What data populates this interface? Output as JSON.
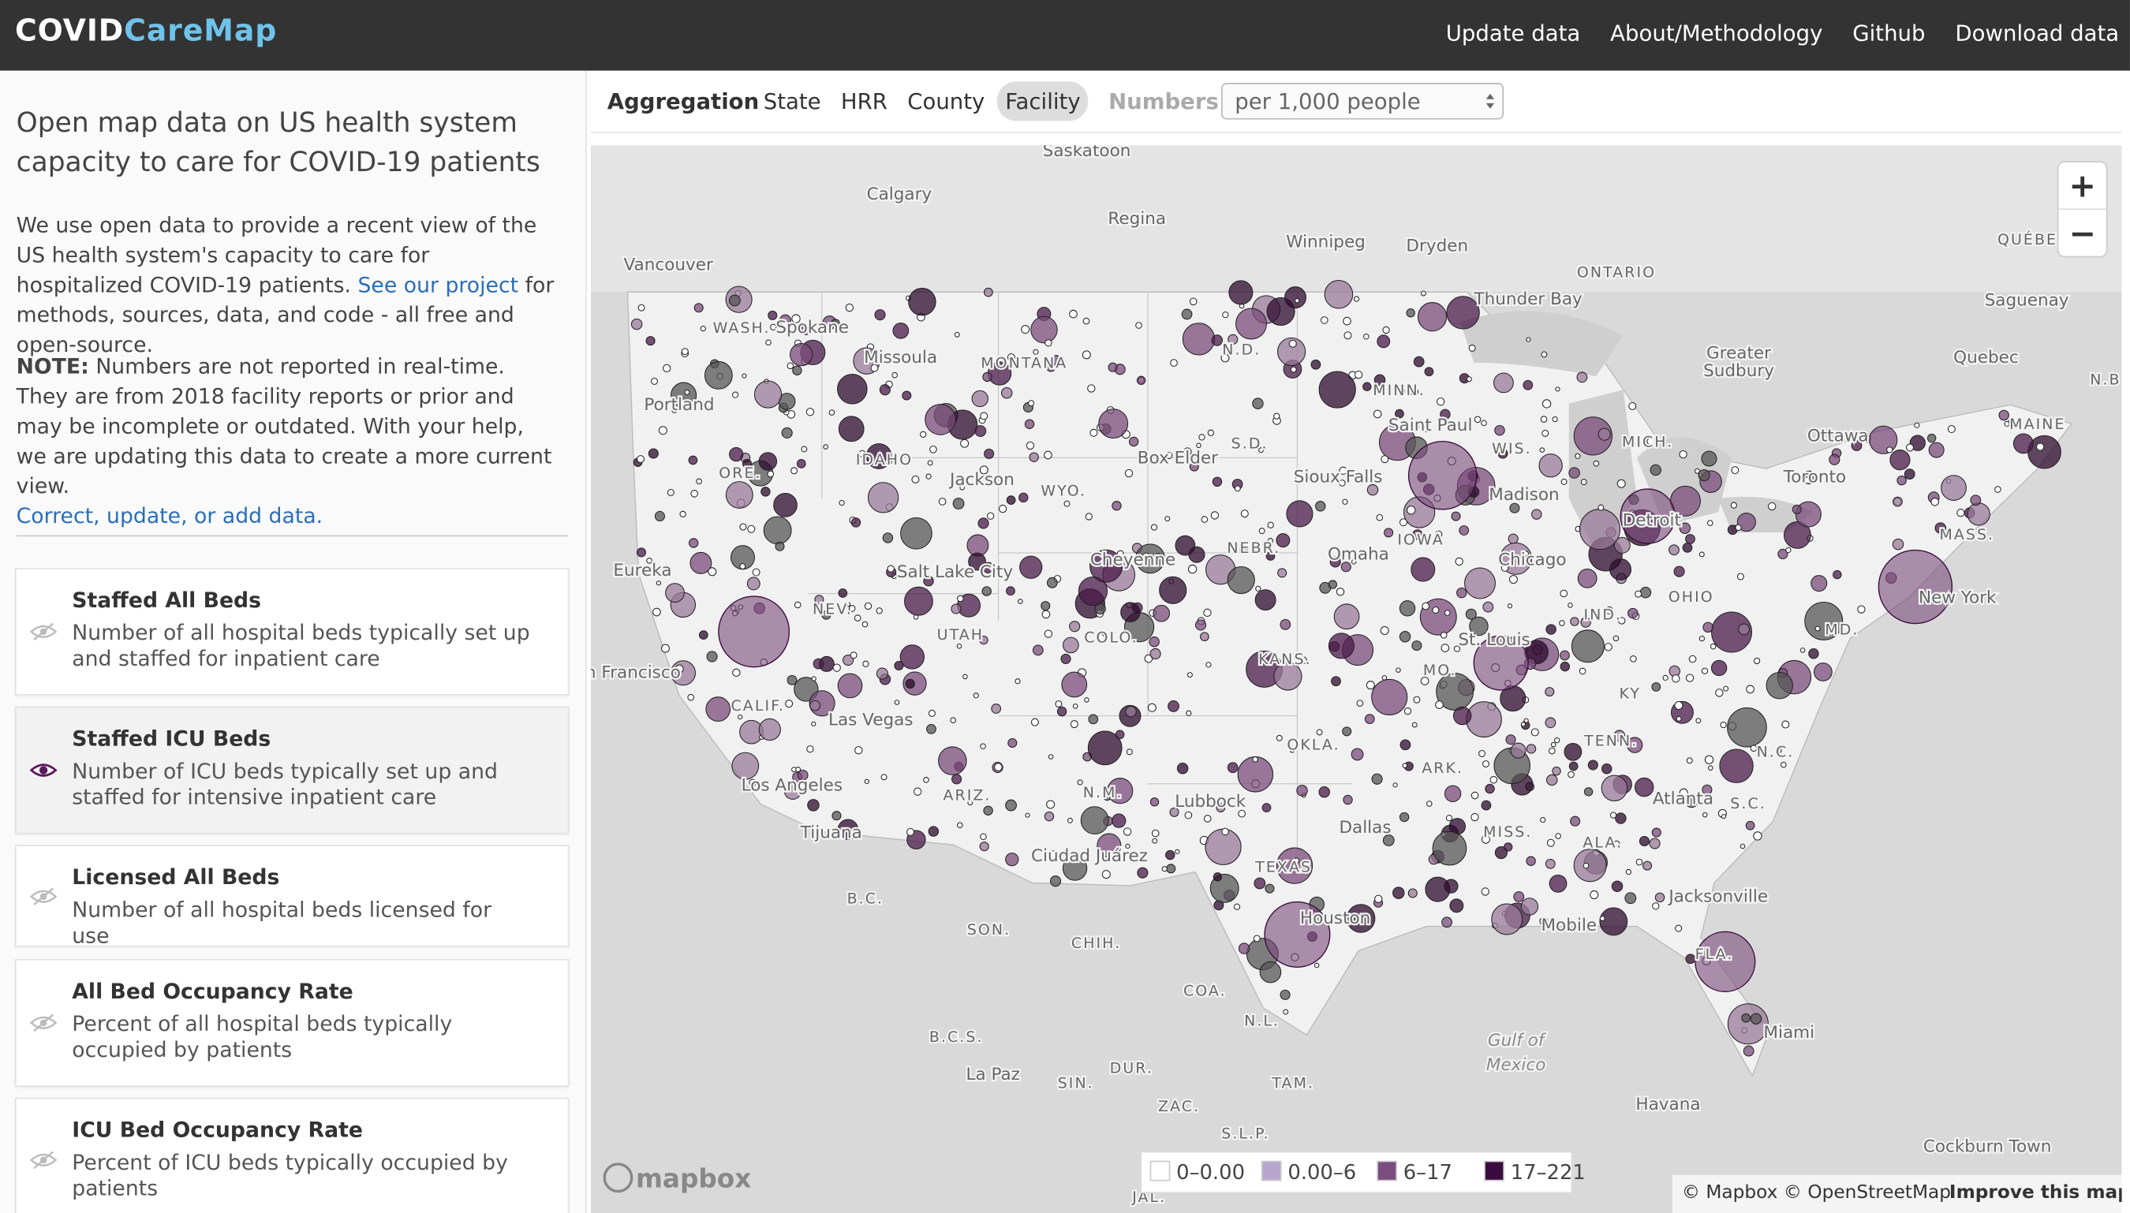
{
  "header": {
    "logo_part1": "COVID",
    "logo_part2": "CareMap",
    "nav": [
      "Update data",
      "About/Methodology",
      "Github",
      "Download data"
    ]
  },
  "sidebar": {
    "heading": "Open map data on US health system capacity to care for COVID-19 patients",
    "intro_before": "We use open data to provide a recent view of the US health system's capacity to care for hospitalized COVID-19 patients.",
    "intro_link": "See our project",
    "intro_after": "for methods, sources, data, and code - all free and open-source.",
    "note_label": "NOTE:",
    "note_text": "Numbers are not reported in real-time. They are from 2018 facility reports or prior and may be incomplete or outdated. With your help, we are updating this data to create a more current view.",
    "note_link": "Correct, update, or add data.",
    "metrics": [
      {
        "title": "Staffed All Beds",
        "description": "Number of all hospital beds typically set up and staffed for inpatient care"
      },
      {
        "title": "Staffed ICU Beds",
        "description": "Number of ICU beds typically set up and staffed for intensive inpatient care"
      },
      {
        "title": "Licensed All Beds",
        "description": "Number of all hospital beds licensed for use"
      },
      {
        "title": "All Bed Occupancy Rate",
        "description": "Percent of all hospital beds typically occupied by patients"
      },
      {
        "title": "ICU Bed Occupancy Rate",
        "description": "Percent of ICU beds typically occupied by patients"
      }
    ]
  },
  "toolbar": {
    "aggregation_label": "Aggregation",
    "options": [
      "State",
      "HRR",
      "County",
      "Facility"
    ],
    "numbers_label": "Numbers",
    "select": "per 1,000 people"
  },
  "map": {
    "places": [
      "Saskatoon",
      "Calgary",
      "Regina",
      "Winnipeg",
      "Dryden",
      "ONTARIO",
      "QUÉBEC",
      "Vancouver",
      "Thunder Bay",
      "Saguenay",
      "WASH.",
      "Spokane",
      "Missoula",
      "MONTANA",
      "N.D.",
      "Greater",
      "Sudbury",
      "Quebec",
      "N.B",
      "Portland",
      "MINN.",
      "Saint Paul",
      "MAINE",
      "Ottawa",
      "IDAHO",
      "ORE.",
      "Box Elder",
      "S.D.",
      "WIS.",
      "MICH.",
      "Jackson",
      "WYO.",
      "Sioux Falls",
      "Madison",
      "Toronto",
      "Detroit",
      "IOWA",
      "NEBR.",
      "Omaha",
      "Chicago",
      "MASS.",
      "Eureka",
      "Salt Lake City",
      "Cheyenne",
      "New York",
      "NEV.",
      "OHIO",
      "IND.",
      "UTAH",
      "COLO.",
      "MD.",
      "KANS.",
      "St. Louis",
      "MO.",
      "n Francisco",
      "KY",
      "CALIF.",
      "Las Vegas",
      "TENN.",
      "N.C.",
      "OKLA.",
      "ARK.",
      "Los Angeles",
      "ARIZ.",
      "N.M.",
      "Atlanta",
      "S.C.",
      "Lubbock",
      "Tijuana",
      "Dallas",
      "TEXAS",
      "Ciudad Juárez",
      "MISS.",
      "ALA.",
      "B.C.",
      "Jacksonville",
      "Houston",
      "SON.",
      "CHIH.",
      "FLA.",
      "Mobile",
      "COA.",
      "B.C.S.",
      "Gulf of",
      "Mexico",
      "Miami",
      "N.L.",
      "La Paz",
      "SIN.",
      "DUR.",
      "TAM.",
      "ZAC.",
      "Havana",
      "S.L.P.",
      "Cockburn Town",
      "JAL."
    ],
    "legend": [
      "0–0.00",
      "0.00–6",
      "6–17",
      "17–221"
    ],
    "zoom_in": "+",
    "zoom_out": "−",
    "mapbox": "mapbox",
    "attribution": "© Mapbox © OpenStreetMap",
    "improve": "Improve this map"
  }
}
